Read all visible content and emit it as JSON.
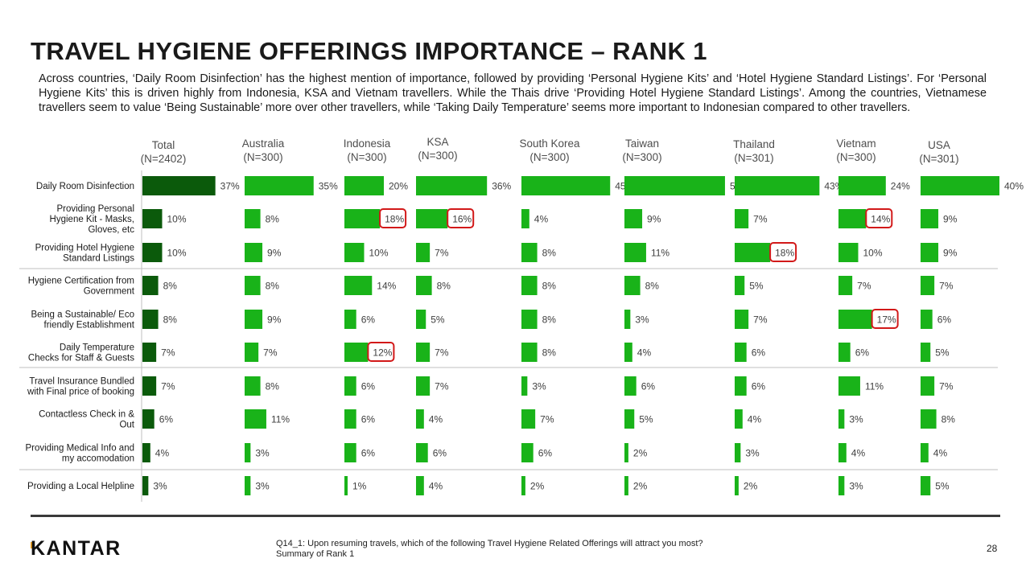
{
  "title": "TRAVEL HYGIENE OFFERINGS IMPORTANCE – RANK 1",
  "summary": "Across countries, ‘Daily Room Disinfection’ has the highest mention of importance, followed by providing ‘Personal Hygiene Kits’ and ‘Hotel Hygiene Standard Listings’. For ‘Personal Hygiene Kits’ this is driven highly from Indonesia, KSA and Vietnam travellers.  While the Thais drive ‘Providing Hotel Hygiene Standard Listings’. Among the countries, Vietnamese travellers seem to value ‘Being Sustainable’ more over other travellers, while ‘Taking Daily Temperature’ seems more important to Indonesian compared to other travellers.",
  "footnote": {
    "question": "Q14_1: Upon resuming travels, which of the following Travel Hygiene Related Offerings will attract you most?",
    "base": "Summary of Rank 1"
  },
  "page_number": "28",
  "logo": "KANTAR",
  "colors": {
    "total_bar": "#0b5a0b",
    "country_bar": "#19b319",
    "highlight": "#d21919",
    "divider": "#bfbfbf"
  },
  "chart_data": {
    "type": "bar",
    "orientation": "horizontal",
    "categories": [
      [
        "Daily Room Disinfection"
      ],
      [
        "Providing Personal",
        "Hygiene Kit - Masks,",
        "Gloves, etc"
      ],
      [
        "Providing Hotel Hygiene",
        "Standard Listings"
      ],
      [
        "Hygiene Certification from",
        "Government"
      ],
      [
        "Being a Sustainable/ Eco",
        "friendly Establishment"
      ],
      [
        "Daily Temperature",
        "Checks for Staff & Guests"
      ],
      [
        "Travel Insurance Bundled",
        "with Final price of booking"
      ],
      [
        "Contactless Check in &",
        "Out"
      ],
      [
        "Providing Medical Info and",
        "my accomodation"
      ],
      [
        "Providing a Local Helpline"
      ]
    ],
    "series": [
      {
        "name": "Total",
        "base": "(N=2402)",
        "values": [
          37,
          10,
          10,
          8,
          8,
          7,
          7,
          6,
          4,
          3
        ]
      },
      {
        "name": "Australia",
        "base": "(N=300)",
        "values": [
          35,
          8,
          9,
          8,
          9,
          7,
          8,
          11,
          3,
          3
        ]
      },
      {
        "name": "Indonesia",
        "base": "(N=300)",
        "values": [
          20,
          18,
          10,
          14,
          6,
          12,
          6,
          6,
          6,
          1
        ]
      },
      {
        "name": "KSA",
        "base": "(N=300)",
        "values": [
          36,
          16,
          7,
          8,
          5,
          7,
          7,
          4,
          6,
          4
        ]
      },
      {
        "name": "South Korea",
        "base": "(N=300)",
        "values": [
          45,
          4,
          8,
          8,
          8,
          8,
          3,
          7,
          6,
          2
        ]
      },
      {
        "name": "Taiwan",
        "base": "(N=300)",
        "values": [
          51,
          9,
          11,
          8,
          3,
          4,
          6,
          5,
          2,
          2
        ]
      },
      {
        "name": "Thailand",
        "base": "(N=301)",
        "values": [
          43,
          7,
          18,
          5,
          7,
          6,
          6,
          4,
          3,
          2
        ]
      },
      {
        "name": "Vietnam",
        "base": "(N=300)",
        "values": [
          24,
          14,
          10,
          7,
          17,
          6,
          11,
          3,
          4,
          3
        ]
      },
      {
        "name": "USA",
        "base": "(N=301)",
        "values": [
          40,
          9,
          9,
          7,
          6,
          5,
          7,
          8,
          4,
          5
        ]
      }
    ],
    "value_suffix": "%",
    "highlighted": [
      {
        "series": "Indonesia",
        "category_index": 1
      },
      {
        "series": "KSA",
        "category_index": 1
      },
      {
        "series": "Vietnam",
        "category_index": 1
      },
      {
        "series": "Thailand",
        "category_index": 2
      },
      {
        "series": "Vietnam",
        "category_index": 4
      },
      {
        "series": "Indonesia",
        "category_index": 5
      }
    ],
    "row_groups": [
      [
        0,
        1,
        2
      ],
      [
        3,
        4,
        5
      ],
      [
        6,
        7,
        8
      ],
      [
        9
      ]
    ]
  }
}
